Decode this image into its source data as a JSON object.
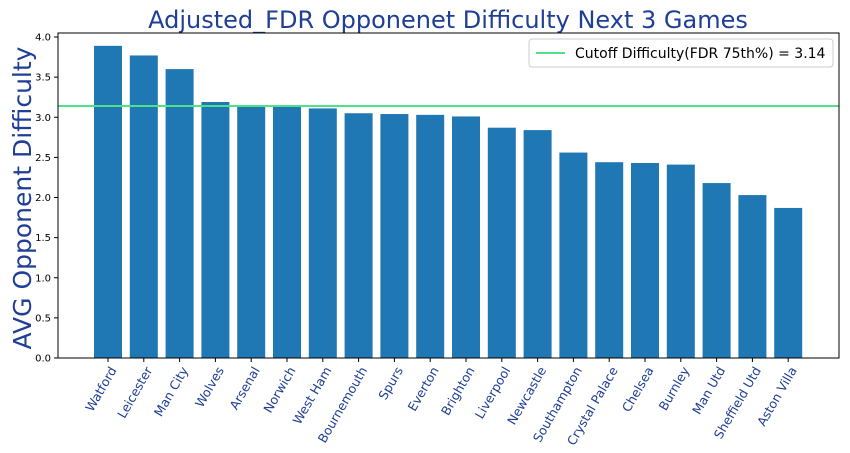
{
  "chart_data": {
    "type": "bar",
    "title": "Adjusted_FDR Opponenet Difficulty Next 3 Games",
    "xlabel": "",
    "ylabel": "AVG Opponent Difficulty",
    "categories": [
      "Watford",
      "Leicester",
      "Man City",
      "Wolves",
      "Arsenal",
      "Norwich",
      "West Ham",
      "Bournemouth",
      "Spurs",
      "Everton",
      "Brighton",
      "Liverpool",
      "Newcastle",
      "Southampton",
      "Crystal Palace",
      "Chelsea",
      "Burnley",
      "Man Utd",
      "Sheffield Utd",
      "Aston Villa"
    ],
    "values": [
      3.89,
      3.77,
      3.6,
      3.19,
      3.14,
      3.14,
      3.11,
      3.05,
      3.04,
      3.03,
      3.01,
      2.87,
      2.84,
      2.56,
      2.44,
      2.43,
      2.41,
      2.18,
      2.03,
      1.87
    ],
    "ylim": [
      0,
      4.05
    ],
    "yticks": [
      "0.0",
      "0.5",
      "1.0",
      "1.5",
      "2.0",
      "2.5",
      "3.0",
      "3.5",
      "4.0"
    ],
    "cutoff": {
      "value": 3.14,
      "label": "Cutoff Difficulty(FDR 75th%) = 3.14"
    },
    "legend_position": "top-right",
    "grid": false,
    "colors": {
      "bar": "#1f77b4",
      "cutoff_line": "#4fe08a",
      "title": "#1f3f96",
      "ylabel": "#1f3f96",
      "xtick": "#1f3f96"
    }
  }
}
